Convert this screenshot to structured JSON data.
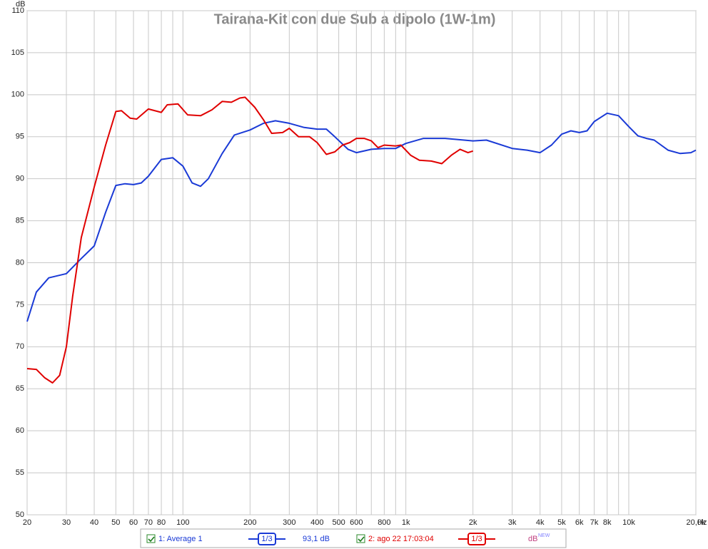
{
  "chart_data": {
    "type": "line",
    "title": "Tairana-Kit con due Sub a dipolo (1W-1m)",
    "y_label": "dB",
    "x_label": "Hz",
    "x_log": true,
    "grid": true,
    "xlim": [
      20,
      20000
    ],
    "ylim": [
      50,
      110
    ],
    "yticks": [
      50,
      55,
      60,
      65,
      70,
      75,
      80,
      85,
      90,
      95,
      100,
      105,
      110
    ],
    "xticks": [
      20,
      30,
      40,
      50,
      60,
      70,
      80,
      {
        "value": 90,
        "label": null
      },
      100,
      200,
      300,
      400,
      500,
      600,
      {
        "value": 700,
        "label": null
      },
      800,
      {
        "value": 900,
        "label": null
      },
      {
        "value": 1000,
        "label": "1k"
      },
      {
        "value": 2000,
        "label": "2k"
      },
      {
        "value": 3000,
        "label": "3k"
      },
      {
        "value": 4000,
        "label": "4k"
      },
      {
        "value": 5000,
        "label": "5k"
      },
      {
        "value": 6000,
        "label": "6k"
      },
      {
        "value": 7000,
        "label": "7k"
      },
      {
        "value": 8000,
        "label": "8k"
      },
      {
        "value": 9000,
        "label": null
      },
      {
        "value": 10000,
        "label": "10k"
      },
      {
        "value": 20000,
        "label": "20,0k"
      }
    ],
    "series": [
      {
        "name": "1: Average 1",
        "color": "#1a3ad6",
        "smoothing": "1/3",
        "level": "93,1 dB",
        "x": [
          20,
          22,
          25,
          30,
          35,
          40,
          45,
          50,
          55,
          60,
          65,
          70,
          80,
          90,
          100,
          110,
          120,
          130,
          150,
          170,
          200,
          230,
          260,
          300,
          350,
          400,
          440,
          480,
          550,
          600,
          700,
          800,
          900,
          1000,
          1200,
          1500,
          2000,
          2300,
          3000,
          3500,
          4000,
          4500,
          5000,
          5500,
          6000,
          6500,
          7000,
          8000,
          9000,
          10000,
          11000,
          12000,
          13000,
          15000,
          17000,
          19000,
          20000
        ],
        "values": [
          73,
          76.5,
          78.2,
          78.7,
          80.5,
          82,
          86,
          89.2,
          89.4,
          89.3,
          89.5,
          90.3,
          92.3,
          92.5,
          91.5,
          89.5,
          89.1,
          90,
          93,
          95.2,
          95.8,
          96.6,
          96.9,
          96.6,
          96.1,
          95.9,
          95.9,
          95,
          93.5,
          93.1,
          93.5,
          93.6,
          93.6,
          94.2,
          94.8,
          94.8,
          94.5,
          94.6,
          93.6,
          93.4,
          93.1,
          94,
          95.3,
          95.7,
          95.5,
          95.7,
          96.8,
          97.8,
          97.5,
          96.2,
          95.1,
          94.8,
          94.6,
          93.4,
          93,
          93.1,
          93.4
        ]
      },
      {
        "name": "2: ago 22 17:03:04",
        "color": "#e00000",
        "smoothing": "1/3",
        "x": [
          20,
          22,
          24,
          26,
          28,
          30,
          32,
          35,
          40,
          45,
          50,
          53,
          58,
          62,
          70,
          80,
          85,
          95,
          105,
          120,
          135,
          150,
          165,
          180,
          190,
          210,
          230,
          250,
          280,
          300,
          330,
          370,
          400,
          440,
          480,
          520,
          560,
          600,
          650,
          700,
          750,
          800,
          900,
          950,
          1050,
          1150,
          1300,
          1450,
          1600,
          1750,
          1900,
          2000
        ],
        "values": [
          67.4,
          67.3,
          66.3,
          65.7,
          66.6,
          70,
          76,
          83,
          89,
          94,
          98,
          98.1,
          97.2,
          97.1,
          98.3,
          97.9,
          98.8,
          98.9,
          97.6,
          97.5,
          98.2,
          99.2,
          99.1,
          99.6,
          99.7,
          98.5,
          97,
          95.4,
          95.5,
          96,
          95,
          95,
          94.3,
          92.9,
          93.2,
          94,
          94.3,
          94.8,
          94.8,
          94.5,
          93.7,
          94,
          93.9,
          94,
          92.8,
          92.2,
          92.1,
          91.8,
          92.8,
          93.5,
          93.1,
          93.3
        ]
      }
    ],
    "legend_extra": {
      "label": "dB",
      "badge": "NEW"
    }
  }
}
